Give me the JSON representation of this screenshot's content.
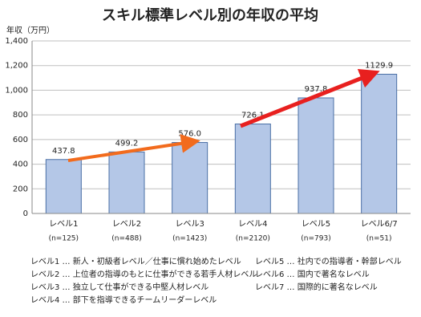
{
  "chart_data": {
    "type": "bar",
    "title": "スキル標準レベル別の年収の平均",
    "y_label": "年収（万円）",
    "categories": [
      "レベル1",
      "レベル2",
      "レベル3",
      "レベル4",
      "レベル5",
      "レベル6/7"
    ],
    "sample_labels": [
      "(n=125)",
      "(n=488)",
      "(n=1423)",
      "(n=2120)",
      "(n=793)",
      "(n=51)"
    ],
    "values": [
      437.8,
      499.2,
      576.0,
      726.1,
      937.8,
      1129.9
    ],
    "value_labels": [
      "437.8",
      "499.2",
      "576.0",
      "726.1",
      "937.8",
      "1129.9"
    ],
    "color": "#b4c7e7",
    "ylim": [
      0,
      1400
    ],
    "yticks": [
      0,
      200,
      400,
      600,
      800,
      {
        "value": 1000,
        "label": "1,000"
      },
      {
        "value": 1200,
        "label": "1,200"
      },
      {
        "value": 1400,
        "label": "1,400"
      }
    ],
    "grid": true,
    "notes": [
      "レベル1 … 新人・初級者レベル／仕事に慣れ始めたレベル",
      "レベル2 … 上位者の指導のもとに仕事ができる若手人材レベル",
      "レベル3 … 独立して仕事ができる中堅人材レベル",
      "レベル4 … 部下を指導できるチームリーダーレベル",
      "レベル5 … 社内での指導者・幹部レベル",
      "レベル6 … 国内で著名なレベル",
      "レベル7 … 国際的に著名なレベル"
    ]
  }
}
